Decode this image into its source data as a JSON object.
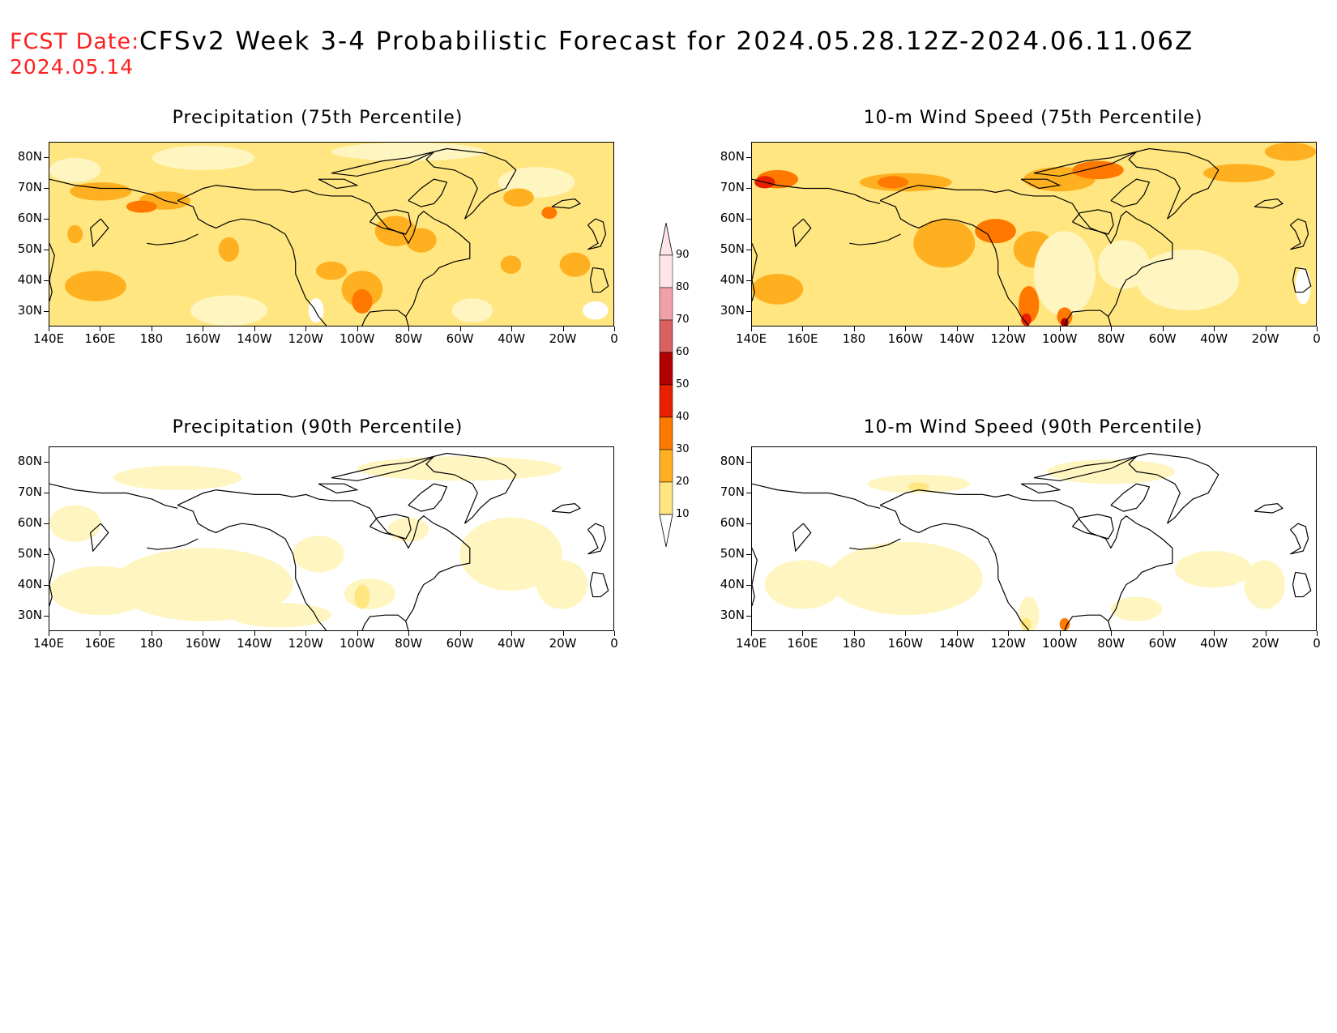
{
  "header": {
    "fcst_label": "FCST Date:",
    "fcst_date": "2024.05.14",
    "title": "CFSv2 Week 3-4 Probabilistic Forecast for 2024.05.28.12Z-2024.06.11.06Z"
  },
  "panels": [
    {
      "id": "precip75",
      "title": "Precipitation (75th Percentile)"
    },
    {
      "id": "wind75",
      "title": "10-m Wind Speed (75th Percentile)"
    },
    {
      "id": "precip90",
      "title": "Precipitation (90th Percentile)"
    },
    {
      "id": "wind90",
      "title": "10-m Wind Speed (90th Percentile)"
    }
  ],
  "lat_labels": [
    "80N",
    "70N",
    "60N",
    "50N",
    "40N",
    "30N"
  ],
  "lon_labels": [
    "140E",
    "160E",
    "180",
    "160W",
    "140W",
    "120W",
    "100W",
    "80W",
    "60W",
    "40W",
    "20W",
    "0"
  ],
  "colorbar": {
    "levels": [
      "10",
      "20",
      "30",
      "40",
      "50",
      "60",
      "70",
      "80",
      "90"
    ],
    "colors": [
      "#fff5c0",
      "#ffe680",
      "#ffb020",
      "#ff7800",
      "#e82000",
      "#b00000",
      "#d86060",
      "#f0a0a8",
      "#ffe4e8"
    ]
  },
  "colors": {
    "header_red": "#ff2020",
    "coast": "#000000",
    "background": "#ffffff"
  }
}
